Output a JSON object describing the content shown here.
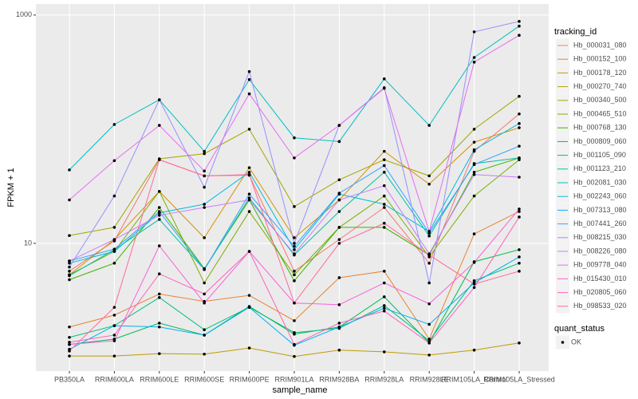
{
  "chart_data": {
    "type": "line",
    "log_y": true,
    "grid": true,
    "x_label": "sample_name",
    "y_label": "FPKM + 1",
    "legend_title": "tracking_id",
    "point_legend_title": "quant_status",
    "point_legend_label": "OK",
    "point_color": "#000000",
    "categories": [
      "PB350LA",
      "RRIM600LA",
      "RRIM600LE",
      "RRIM600SE",
      "RRIM600PE",
      "RRIM901LA",
      "RRIM928BA",
      "RRIM928LA",
      "RRIM928LE",
      "RRIM105LA_Control",
      "RRIM105LA_Stressed"
    ],
    "ylim": [
      0.76,
      1250
    ],
    "yticks": [
      10,
      1000
    ],
    "series": [
      {
        "name": "Hb_000031_080",
        "color": "#F8766D",
        "values": [
          5.7,
          10.5,
          54,
          39,
          39.5,
          5.7,
          10.8,
          20.6,
          6.7,
          64,
          136
        ]
      },
      {
        "name": "Hb_000152_100",
        "color": "#EA8331",
        "values": [
          1.85,
          2.35,
          3.6,
          3.1,
          3.5,
          2.1,
          5.0,
          5.7,
          1.45,
          12.1,
          19
        ]
      },
      {
        "name": "Hb_000178_120",
        "color": "#D89000",
        "values": [
          5.3,
          10.8,
          28.5,
          11.2,
          46,
          11.2,
          24,
          64,
          33,
          77,
          103
        ]
      },
      {
        "name": "Hb_000270_740",
        "color": "#C09B00",
        "values": [
          1.03,
          1.03,
          1.08,
          1.07,
          1.21,
          1.02,
          1.16,
          1.12,
          1.05,
          1.16,
          1.34
        ]
      },
      {
        "name": "Hb_000340_500",
        "color": "#A3A500",
        "values": [
          11.7,
          13.8,
          55,
          61,
          100,
          21,
          36,
          54,
          39,
          100,
          194
        ]
      },
      {
        "name": "Hb_000465_510",
        "color": "#7CAE00",
        "values": [
          5.3,
          8.5,
          28.5,
          4.5,
          19,
          5.3,
          13.8,
          26,
          7.6,
          26,
          54
        ]
      },
      {
        "name": "Hb_000768_130",
        "color": "#39B600",
        "values": [
          4.8,
          6.7,
          20.6,
          6.0,
          24,
          4.7,
          13.8,
          13.8,
          7.9,
          42,
          56
        ]
      },
      {
        "name": "Hb_000809_060",
        "color": "#00BB4E",
        "values": [
          1.3,
          1.45,
          2.0,
          1.57,
          2.8,
          1.6,
          1.85,
          3.4,
          1.34,
          6.9,
          8.8
        ]
      },
      {
        "name": "Hb_001105_090",
        "color": "#00BF7D",
        "values": [
          1.5,
          1.9,
          3.35,
          1.75,
          2.75,
          1.65,
          1.8,
          2.85,
          1.4,
          4.7,
          6.7
        ]
      },
      {
        "name": "Hb_001123_210",
        "color": "#00C1A3",
        "values": [
          5.2,
          8.8,
          16.2,
          5.9,
          25,
          7.9,
          19,
          42,
          11.6,
          50,
          56
        ]
      },
      {
        "name": "Hb_002081_030",
        "color": "#00BFC4",
        "values": [
          44,
          110,
          181,
          64,
          272,
          84,
          78,
          276,
          108,
          425,
          800
        ]
      },
      {
        "name": "Hb_002243_060",
        "color": "#00BAE0",
        "values": [
          6.7,
          8.5,
          18.5,
          22,
          42,
          8.8,
          27,
          22,
          12.7,
          66,
          112
        ]
      },
      {
        "name": "Hb_007313_080",
        "color": "#00B0F6",
        "values": [
          1.18,
          1.9,
          1.85,
          1.57,
          2.75,
          1.28,
          1.85,
          2.7,
          1.95,
          4.5,
          7.6
        ]
      },
      {
        "name": "Hb_007441_260",
        "color": "#35A2FF",
        "values": [
          7.0,
          8.9,
          19,
          5.9,
          27,
          9.4,
          27.5,
          48,
          12.3,
          49,
          71
        ]
      },
      {
        "name": "Hb_008215_030",
        "color": "#9590FF",
        "values": [
          6.2,
          26,
          181,
          31,
          320,
          10,
          108,
          231,
          4.5,
          713,
          880
        ]
      },
      {
        "name": "Hb_008226_080",
        "color": "#C77CFF",
        "values": [
          7.0,
          10.8,
          17.6,
          20.6,
          24,
          8.1,
          24,
          32,
          8.1,
          40,
          38
        ]
      },
      {
        "name": "Hb_009778_040",
        "color": "#E76BF3",
        "values": [
          24,
          53,
          108,
          43,
          204,
          56,
          108,
          228,
          12.7,
          387,
          665
        ]
      },
      {
        "name": "Hb_015430_010",
        "color": "#FA62DB",
        "values": [
          1.3,
          1.4,
          9.5,
          3.0,
          8.5,
          3.0,
          2.9,
          4.5,
          2.95,
          6.8,
          20
        ]
      },
      {
        "name": "Hb_020805_060",
        "color": "#FF62BC",
        "values": [
          1.36,
          1.57,
          5.4,
          3.6,
          8.5,
          1.3,
          2.0,
          2.55,
          1.34,
          4.1,
          17
        ]
      },
      {
        "name": "Hb_098533_020",
        "color": "#FF6A98",
        "values": [
          1.14,
          2.75,
          54,
          39,
          40,
          3.0,
          10,
          15,
          7.9,
          4.4,
          5.7
        ]
      }
    ]
  }
}
